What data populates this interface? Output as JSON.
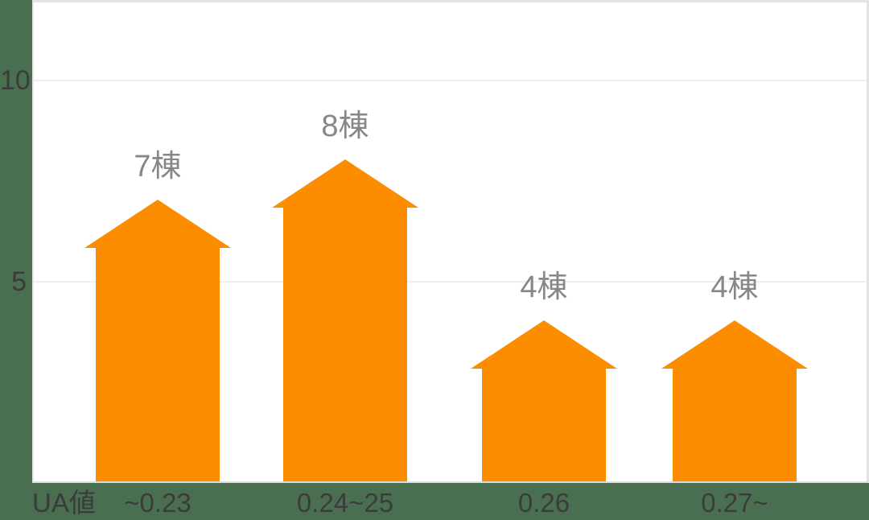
{
  "chart_data": {
    "type": "bar",
    "title": "",
    "x_axis_title": "UA値",
    "categories": [
      "~0.23",
      "0.24~25",
      "0.26",
      "0.27~"
    ],
    "values": [
      7,
      8,
      4,
      4
    ],
    "bar_value_labels": [
      "7棟",
      "8棟",
      "4棟",
      "4棟"
    ],
    "y_ticks": [
      10,
      5
    ],
    "ylim": [
      0,
      12
    ],
    "grid": "horizontal",
    "legend": "none",
    "bar_shape": "house-arrow-pentagon",
    "colors": {
      "bar": "#FC8D00",
      "page_background": "#4A6F50",
      "plot_background": "#FFFFFF",
      "gridline": "#EFEFEF",
      "panel_border": "#E3E3E3",
      "axis_label": "#3B3B3B",
      "value_label": "#878787"
    }
  }
}
